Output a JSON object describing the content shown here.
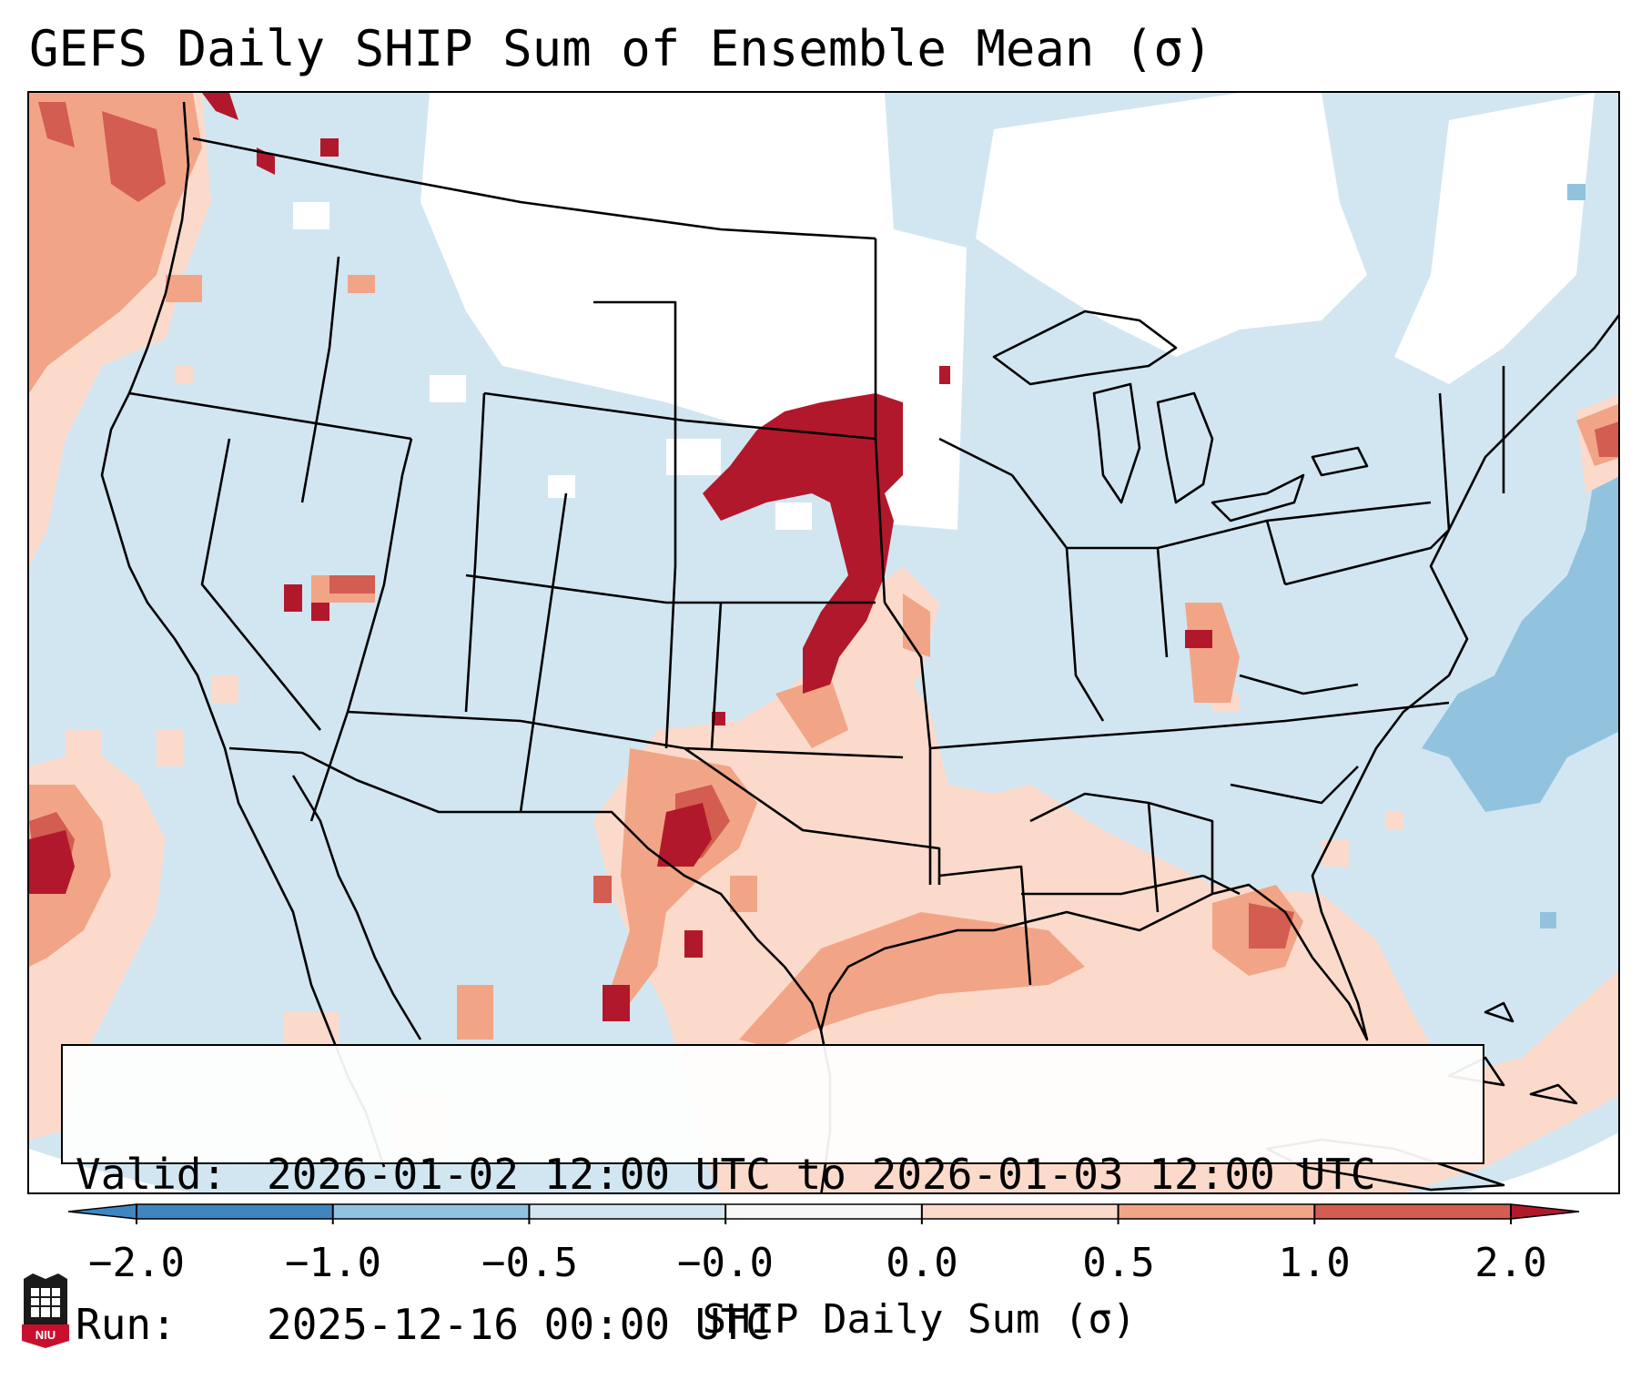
{
  "title": "GEFS Daily SHIP Sum of Ensemble Mean (σ)",
  "valid_label": "Valid:",
  "valid_text": "2026-01-02 12:00 UTC to 2026-01-03 12:00 UTC",
  "run_label": "Run:",
  "run_text": "2025-12-16 00:00 UTC",
  "colorbar": {
    "label": "SHIP Daily Sum (σ)",
    "ticks": [
      "−2.0",
      "−1.0",
      "−0.5",
      "−0.0",
      "0.0",
      "0.5",
      "1.0",
      "2.0"
    ],
    "colors": [
      "#3f86c0",
      "#91c3df",
      "#d2e6f1",
      "#f8f8f8",
      "#fbdacb",
      "#f1a586",
      "#d35d50",
      "#b2182b"
    ]
  },
  "logo_text": "NIU",
  "legend_colors": {
    "strong_negative": "#3f86c0",
    "negative": "#91c3df",
    "weak_negative": "#d2e6f1",
    "neutral": "#ffffff",
    "weak_positive": "#fbdacb",
    "positive": "#f1a586",
    "strong_positive": "#d35d50",
    "extreme_positive": "#b2182b"
  }
}
